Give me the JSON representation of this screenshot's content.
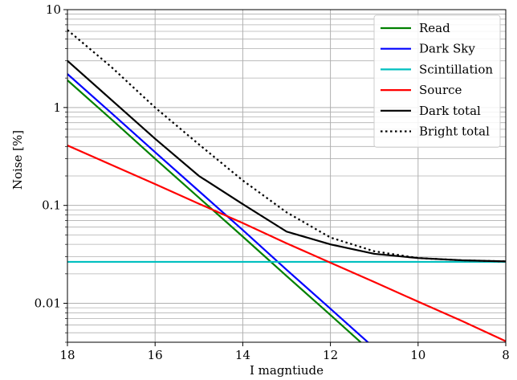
{
  "chart_data": {
    "type": "line",
    "title": "",
    "xlabel": "I magntiude",
    "ylabel": "Noise [%]",
    "xlim": [
      18,
      8
    ],
    "ylim": [
      0.004,
      10
    ],
    "x_scale": "linear",
    "x_reversed": true,
    "y_scale": "log",
    "grid": true,
    "legend_position": "top-right",
    "x_ticks": [
      18,
      16,
      14,
      12,
      10,
      8
    ],
    "y_ticks": [
      0.01,
      0.1,
      1,
      10
    ],
    "x_tick_labels": [
      "18",
      "16",
      "14",
      "12",
      "10",
      "8"
    ],
    "y_tick_labels": [
      "0.01",
      "0.1",
      "1",
      "10"
    ],
    "x": [
      18,
      17,
      16,
      15,
      14,
      13,
      12,
      11,
      10,
      9,
      8
    ],
    "series": [
      {
        "name": "Read",
        "color": "#008000",
        "style": "solid",
        "values": [
          1.9,
          0.76,
          0.3,
          0.12,
          0.048,
          0.019,
          0.0076,
          0.003,
          null,
          null,
          null
        ]
      },
      {
        "name": "Dark Sky",
        "color": "#0000ff",
        "style": "solid",
        "values": [
          2.2,
          0.88,
          0.35,
          0.14,
          0.056,
          0.022,
          0.0088,
          0.0035,
          null,
          null,
          null
        ]
      },
      {
        "name": "Scintillation",
        "color": "#00bfbf",
        "style": "solid",
        "values": [
          0.0265,
          0.0265,
          0.0265,
          0.0265,
          0.0265,
          0.0265,
          0.0265,
          0.0265,
          0.0265,
          0.0265,
          0.0265
        ]
      },
      {
        "name": "Source",
        "color": "#ff0000",
        "style": "solid",
        "values": [
          0.41,
          0.26,
          0.165,
          0.104,
          0.066,
          0.041,
          0.026,
          0.0165,
          0.0104,
          0.0066,
          0.0041
        ]
      },
      {
        "name": "Dark total",
        "color": "#000000",
        "style": "solid",
        "values": [
          3.0,
          1.2,
          0.48,
          0.2,
          0.103,
          0.054,
          0.04,
          0.032,
          0.029,
          0.0275,
          0.0268
        ]
      },
      {
        "name": "Bright total",
        "color": "#000000",
        "style": "dotted",
        "values": [
          6.2,
          2.6,
          1.0,
          0.42,
          0.18,
          0.085,
          0.047,
          0.034,
          0.029,
          0.0275,
          0.0268
        ]
      }
    ]
  }
}
